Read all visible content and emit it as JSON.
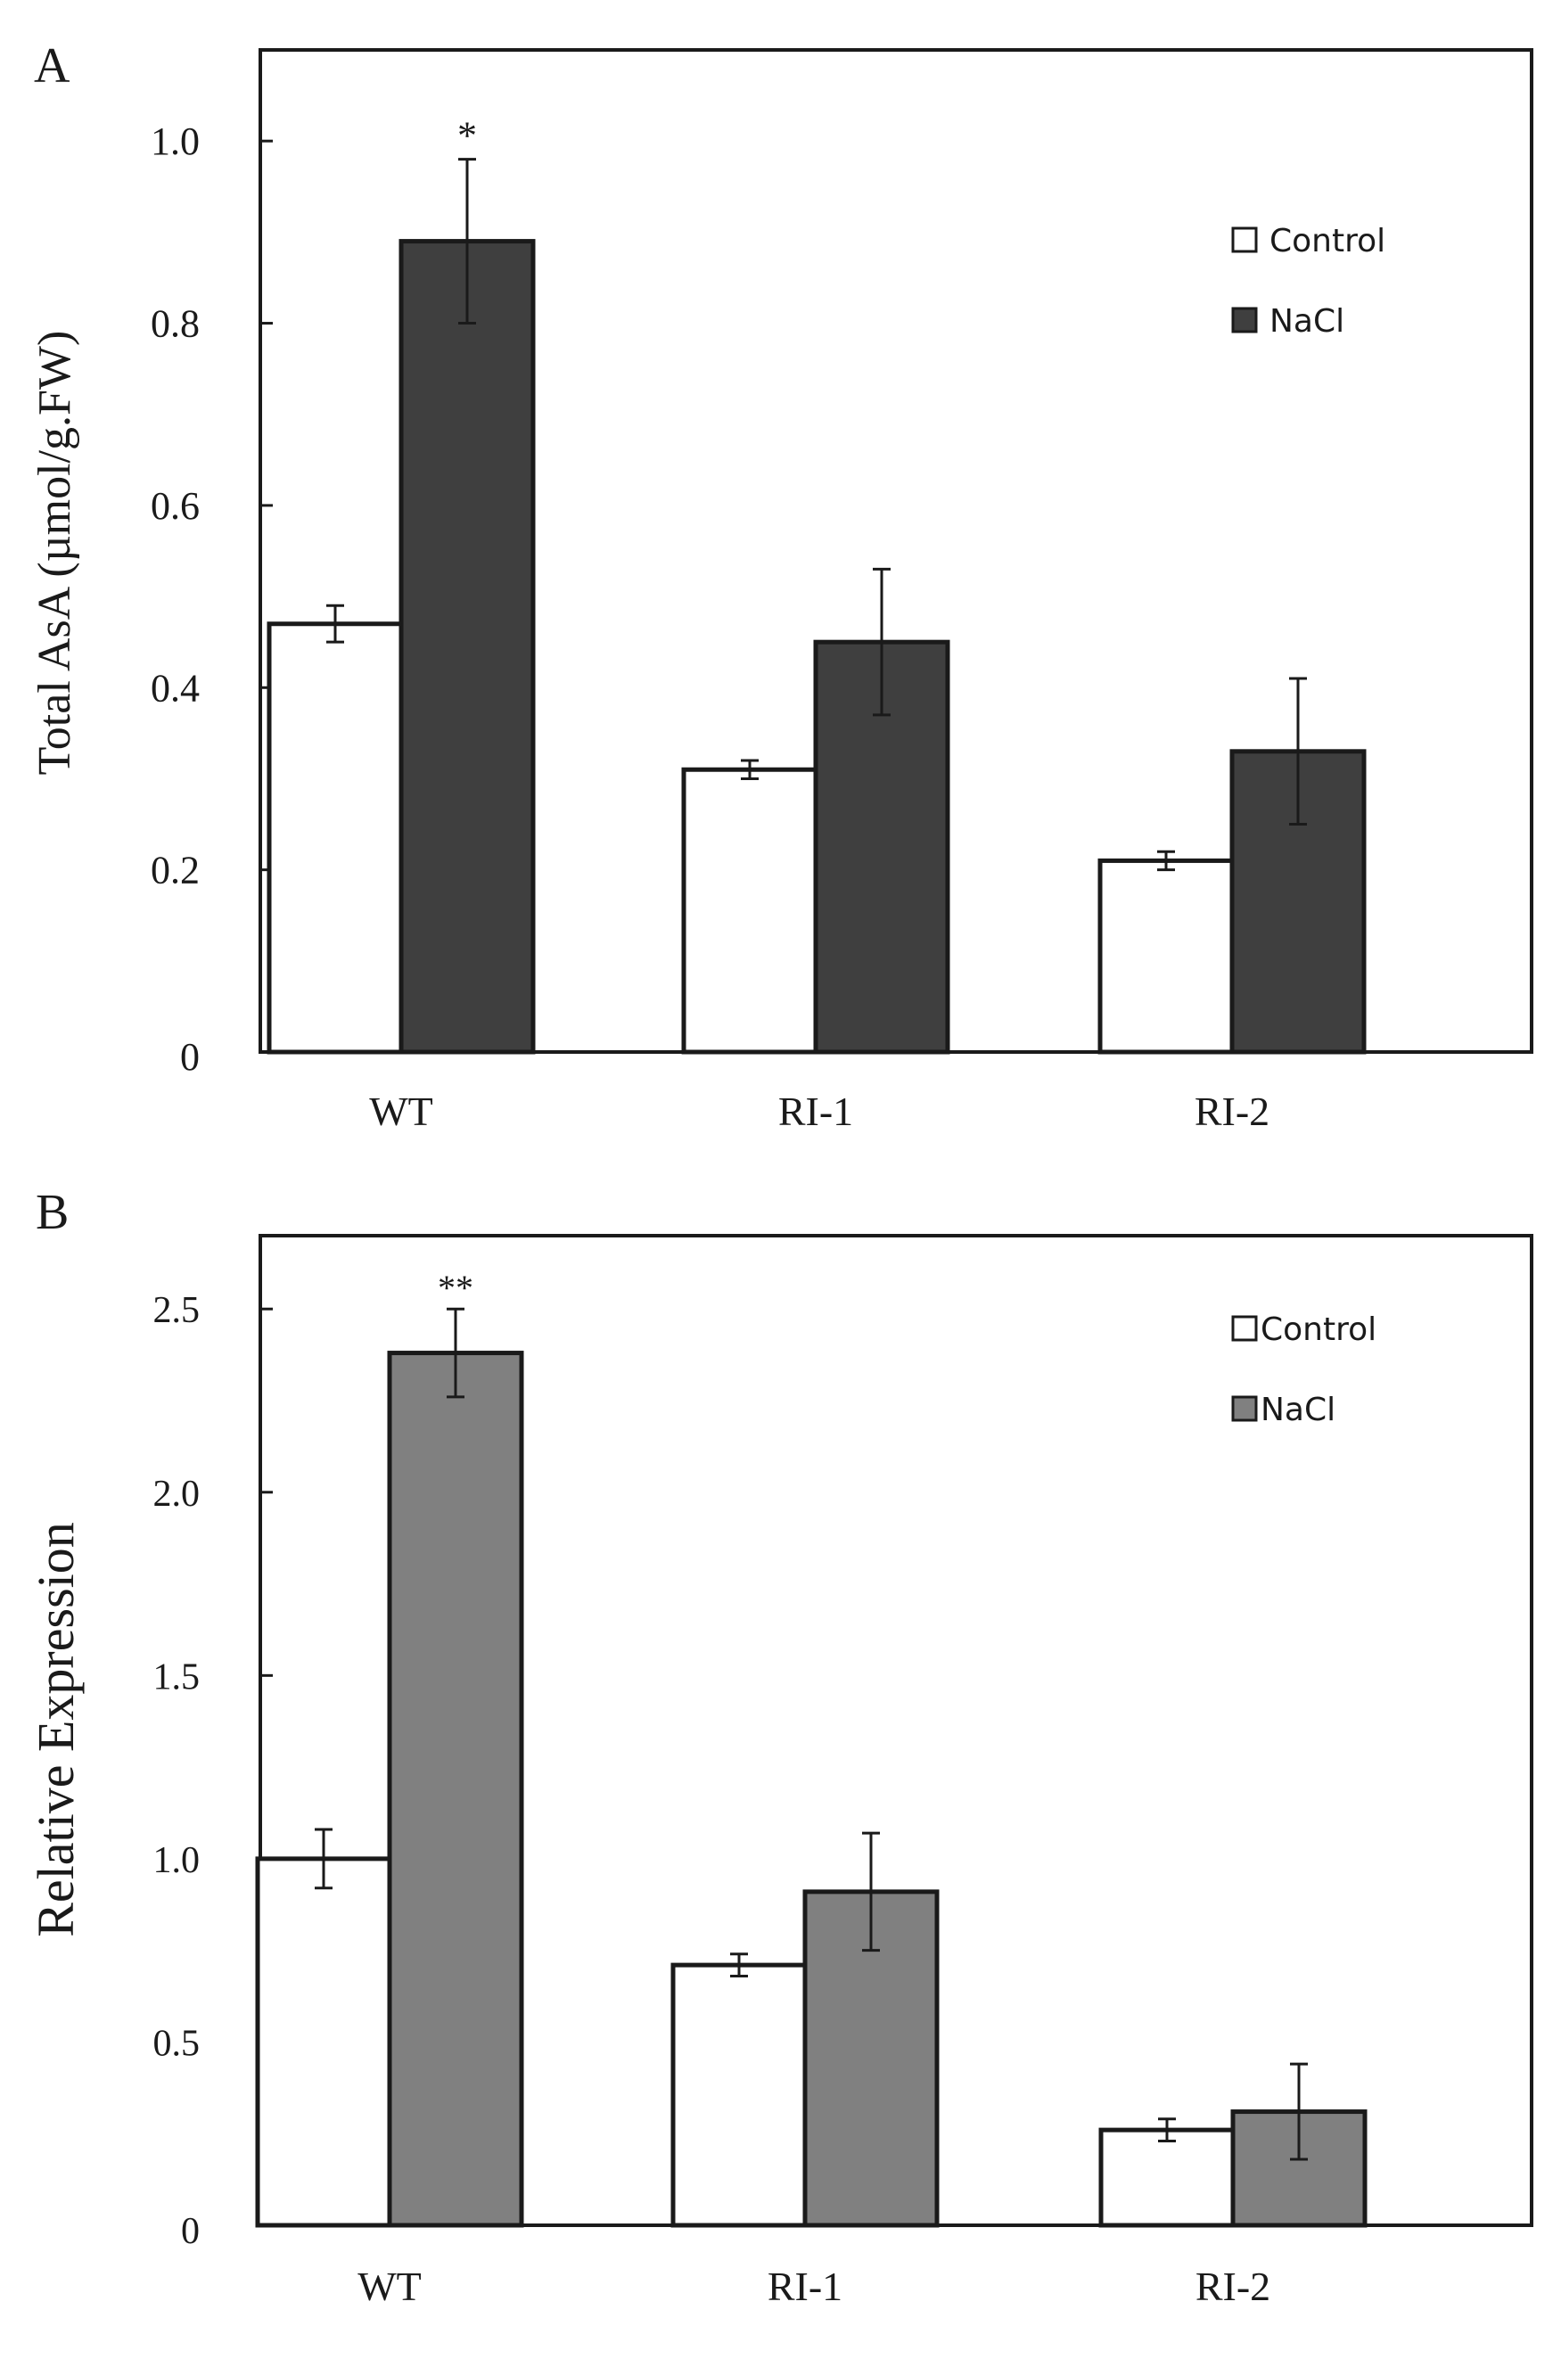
{
  "chart_data": [
    {
      "panel": "A",
      "type": "bar",
      "categories": [
        "WT",
        "RI-1",
        "RI-2"
      ],
      "series": [
        {
          "name": "Control",
          "values": [
            0.47,
            0.31,
            0.21
          ],
          "errors": [
            0.02,
            0.01,
            0.01
          ],
          "color": "#ffffff"
        },
        {
          "name": "NaCl",
          "values": [
            0.89,
            0.45,
            0.33
          ],
          "errors": [
            0.09,
            0.08,
            0.08
          ],
          "color": "#3f3f3f"
        }
      ],
      "annotations": [
        {
          "category": 0,
          "series": 1,
          "text": "*"
        }
      ],
      "ylabel": "Total   AsA (µmol/g.FW)",
      "ylim": [
        0,
        1.1
      ],
      "yticks": [
        0,
        0.2,
        0.4,
        0.6,
        0.8,
        1.0
      ],
      "ytick_labels": [
        "0",
        "0.2",
        "0.4",
        "0.6",
        "0.8",
        "1.0"
      ],
      "legend_position": "top-right",
      "grid": false
    },
    {
      "panel": "B",
      "type": "bar",
      "categories": [
        "WT",
        "RI-1",
        "RI-2"
      ],
      "series": [
        {
          "name": "Control",
          "values": [
            1.0,
            0.71,
            0.26
          ],
          "errors": [
            0.08,
            0.03,
            0.03
          ],
          "color": "#ffffff"
        },
        {
          "name": "NaCl",
          "values": [
            2.38,
            0.91,
            0.31
          ],
          "errors": [
            0.12,
            0.16,
            0.13
          ],
          "color": "#808080"
        }
      ],
      "annotations": [
        {
          "category": 0,
          "series": 1,
          "text": "**"
        }
      ],
      "ylabel": "Relative Expression",
      "ylim": [
        0,
        2.7
      ],
      "yticks": [
        0,
        0.5,
        1.0,
        1.5,
        2.0,
        2.5
      ],
      "ytick_labels": [
        "0",
        "0.5",
        "1.0",
        "1.5",
        "2.0",
        "2.5"
      ],
      "legend_position": "top-right",
      "grid": false
    }
  ]
}
